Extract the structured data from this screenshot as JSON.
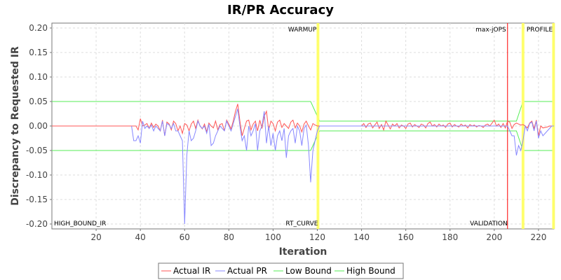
{
  "chart_data": {
    "type": "line",
    "title": "IR/PR Accuracy",
    "xlabel": "Iteration",
    "ylabel": "Discrepancy to Requested IR",
    "xlim": [
      0,
      227
    ],
    "ylim": [
      -0.21,
      0.21
    ],
    "x_ticks": [
      20,
      40,
      60,
      80,
      100,
      120,
      140,
      160,
      180,
      200,
      220
    ],
    "y_ticks": [
      -0.2,
      -0.15,
      -0.1,
      -0.05,
      0.0,
      0.05,
      0.1,
      0.15,
      0.2
    ],
    "y_tick_labels": [
      "-0.20",
      "-0.15",
      "-0.10",
      "-0.05",
      "0.00",
      "0.05",
      "0.10",
      "0.15",
      "0.20"
    ],
    "grid": true,
    "legend_position": "bottom",
    "series": [
      {
        "name": "Actual IR",
        "color": "#ff5555",
        "points": [
          [
            0,
            0
          ],
          [
            36,
            0
          ],
          [
            38,
            0
          ],
          [
            39,
            -0.008
          ],
          [
            40,
            0.015
          ],
          [
            41,
            0
          ],
          [
            42,
            0.002
          ],
          [
            43,
            0.005
          ],
          [
            44,
            -0.005
          ],
          [
            45,
            0.006
          ],
          [
            46,
            -0.003
          ],
          [
            47,
            0.004
          ],
          [
            48,
            0
          ],
          [
            49,
            -0.01
          ],
          [
            50,
            0.012
          ],
          [
            51,
            -0.02
          ],
          [
            52,
            0.008
          ],
          [
            53,
            0.004
          ],
          [
            54,
            -0.008
          ],
          [
            55,
            0.01
          ],
          [
            56,
            0.005
          ],
          [
            57,
            -0.01
          ],
          [
            58,
            0
          ],
          [
            59,
            -0.015
          ],
          [
            60,
            0.005
          ],
          [
            61,
            0.002
          ],
          [
            62,
            -0.01
          ],
          [
            63,
            0.004
          ],
          [
            64,
            0.01
          ],
          [
            65,
            -0.005
          ],
          [
            66,
            0.012
          ],
          [
            67,
            0
          ],
          [
            68,
            -0.006
          ],
          [
            69,
            0.004
          ],
          [
            70,
            -0.012
          ],
          [
            71,
            0.006
          ],
          [
            72,
            0
          ],
          [
            73,
            -0.004
          ],
          [
            74,
            0.01
          ],
          [
            75,
            -0.008
          ],
          [
            76,
            0.003
          ],
          [
            77,
            0.005
          ],
          [
            78,
            -0.01
          ],
          [
            79,
            0.012
          ],
          [
            80,
            0.004
          ],
          [
            81,
            -0.006
          ],
          [
            82,
            0.01
          ],
          [
            83,
            0.03
          ],
          [
            84,
            0.045
          ],
          [
            85,
            0.01
          ],
          [
            86,
            -0.02
          ],
          [
            87,
            -0.005
          ],
          [
            88,
            0.01
          ],
          [
            89,
            0.012
          ],
          [
            90,
            -0.008
          ],
          [
            91,
            0.004
          ],
          [
            92,
            0.01
          ],
          [
            93,
            -0.01
          ],
          [
            94,
            0.012
          ],
          [
            95,
            -0.005
          ],
          [
            96,
            0.02
          ],
          [
            97,
            0.03
          ],
          [
            98,
            -0.008
          ],
          [
            99,
            0.01
          ],
          [
            100,
            0.005
          ],
          [
            101,
            -0.01
          ],
          [
            102,
            0.008
          ],
          [
            103,
            0.012
          ],
          [
            104,
            -0.003
          ],
          [
            105,
            0.005
          ],
          [
            106,
            0
          ],
          [
            107,
            -0.005
          ],
          [
            108,
            0.008
          ],
          [
            109,
            0.012
          ],
          [
            110,
            -0.004
          ],
          [
            111,
            0.006
          ],
          [
            112,
            0
          ],
          [
            113,
            -0.012
          ],
          [
            114,
            0.004
          ],
          [
            115,
            0.01
          ],
          [
            116,
            0
          ],
          [
            117,
            -0.008
          ],
          [
            118,
            0.005
          ],
          [
            119,
            0.002
          ],
          [
            120,
            0
          ],
          [
            121,
            0
          ],
          [
            140,
            0
          ],
          [
            141,
            0.005
          ],
          [
            142,
            -0.003
          ],
          [
            143,
            0.004
          ],
          [
            144,
            0.006
          ],
          [
            145,
            -0.004
          ],
          [
            146,
            0.002
          ],
          [
            147,
            0.008
          ],
          [
            148,
            -0.005
          ],
          [
            149,
            0.003
          ],
          [
            150,
            -0.008
          ],
          [
            151,
            0.01
          ],
          [
            152,
            0.002
          ],
          [
            153,
            -0.006
          ],
          [
            154,
            0.004
          ],
          [
            155,
            0
          ],
          [
            156,
            0.005
          ],
          [
            157,
            -0.004
          ],
          [
            158,
            0.002
          ],
          [
            159,
            0
          ],
          [
            160,
            -0.005
          ],
          [
            161,
            0.004
          ],
          [
            162,
            0.006
          ],
          [
            163,
            -0.002
          ],
          [
            164,
            0.003
          ],
          [
            165,
            0
          ],
          [
            166,
            -0.003
          ],
          [
            167,
            0.004
          ],
          [
            168,
            0.002
          ],
          [
            169,
            -0.004
          ],
          [
            170,
            0.005
          ],
          [
            171,
            0.008
          ],
          [
            172,
            0
          ],
          [
            173,
            0.003
          ],
          [
            174,
            -0.002
          ],
          [
            175,
            0.004
          ],
          [
            176,
            0
          ],
          [
            177,
            0.002
          ],
          [
            178,
            -0.003
          ],
          [
            179,
            0.004
          ],
          [
            180,
            0.006
          ],
          [
            181,
            -0.002
          ],
          [
            182,
            0.003
          ],
          [
            183,
            0
          ],
          [
            184,
            -0.002
          ],
          [
            185,
            0.004
          ],
          [
            186,
            0
          ],
          [
            187,
            0.002
          ],
          [
            188,
            -0.004
          ],
          [
            189,
            0.003
          ],
          [
            190,
            0
          ],
          [
            191,
            0.002
          ],
          [
            192,
            -0.002
          ],
          [
            193,
            0.001
          ],
          [
            194,
            0
          ],
          [
            195,
            -0.003
          ],
          [
            196,
            0.002
          ],
          [
            197,
            0.004
          ],
          [
            198,
            0
          ],
          [
            199,
            0.006
          ],
          [
            200,
            0.012
          ],
          [
            201,
            0
          ],
          [
            202,
            0.004
          ],
          [
            203,
            -0.003
          ],
          [
            204,
            0.005
          ],
          [
            205,
            -0.004
          ],
          [
            206,
            0.01
          ],
          [
            207,
            0.008
          ],
          [
            208,
            -0.005
          ],
          [
            209,
            0.003
          ],
          [
            210,
            0.006
          ],
          [
            211,
            0.004
          ],
          [
            212,
            0.002
          ],
          [
            213,
            0.003
          ],
          [
            214,
            0
          ],
          [
            215,
            -0.004
          ],
          [
            216,
            0.006
          ],
          [
            217,
            0.01
          ],
          [
            218,
            -0.005
          ],
          [
            219,
            0.012
          ],
          [
            220,
            -0.02
          ],
          [
            221,
            0
          ],
          [
            222,
            -0.004
          ],
          [
            223,
            -0.003
          ],
          [
            224,
            -0.002
          ],
          [
            225,
            0
          ],
          [
            226,
            0
          ],
          [
            227,
            0
          ]
        ]
      },
      {
        "name": "Actual PR",
        "color": "#8888ff",
        "points": [
          [
            36,
            0
          ],
          [
            37,
            -0.03
          ],
          [
            38,
            -0.03
          ],
          [
            39,
            -0.02
          ],
          [
            40,
            -0.035
          ],
          [
            41,
            0.01
          ],
          [
            42,
            -0.005
          ],
          [
            43,
            0
          ],
          [
            44,
            -0.005
          ],
          [
            45,
            0.002
          ],
          [
            46,
            -0.01
          ],
          [
            47,
            0
          ],
          [
            48,
            -0.005
          ],
          [
            49,
            -0.01
          ],
          [
            50,
            0.01
          ],
          [
            51,
            -0.02
          ],
          [
            52,
            0.005
          ],
          [
            53,
            0.002
          ],
          [
            54,
            -0.005
          ],
          [
            55,
            0.005
          ],
          [
            56,
            -0.01
          ],
          [
            57,
            -0.01
          ],
          [
            58,
            -0.02
          ],
          [
            59,
            -0.03
          ],
          [
            60,
            -0.2
          ],
          [
            61,
            -0.06
          ],
          [
            62,
            -0.01
          ],
          [
            63,
            -0.03
          ],
          [
            64,
            -0.025
          ],
          [
            65,
            -0.01
          ],
          [
            66,
            0.01
          ],
          [
            67,
            0
          ],
          [
            68,
            -0.005
          ],
          [
            69,
            0
          ],
          [
            70,
            -0.015
          ],
          [
            71,
            0.004
          ],
          [
            72,
            -0.04
          ],
          [
            73,
            -0.035
          ],
          [
            74,
            -0.02
          ],
          [
            75,
            -0.01
          ],
          [
            76,
            0
          ],
          [
            77,
            -0.005
          ],
          [
            78,
            -0.01
          ],
          [
            79,
            0.01
          ],
          [
            80,
            0
          ],
          [
            81,
            -0.01
          ],
          [
            82,
            0.005
          ],
          [
            83,
            0.02
          ],
          [
            84,
            0.035
          ],
          [
            85,
            0
          ],
          [
            86,
            -0.03
          ],
          [
            87,
            -0.02
          ],
          [
            88,
            -0.05
          ],
          [
            89,
            0
          ],
          [
            90,
            -0.02
          ],
          [
            91,
            -0.01
          ],
          [
            92,
            0.005
          ],
          [
            93,
            -0.05
          ],
          [
            94,
            -0.01
          ],
          [
            95,
            0
          ],
          [
            96,
            0.03
          ],
          [
            97,
            -0.035
          ],
          [
            98,
            0
          ],
          [
            99,
            -0.04
          ],
          [
            100,
            -0.015
          ],
          [
            101,
            -0.05
          ],
          [
            102,
            -0.02
          ],
          [
            103,
            -0.01
          ],
          [
            104,
            -0.03
          ],
          [
            105,
            -0.005
          ],
          [
            106,
            -0.065
          ],
          [
            107,
            -0.02
          ],
          [
            108,
            -0.01
          ],
          [
            109,
            -0.005
          ],
          [
            110,
            -0.035
          ],
          [
            111,
            0
          ],
          [
            112,
            -0.01
          ],
          [
            113,
            -0.04
          ],
          [
            114,
            -0.005
          ],
          [
            115,
            0.002
          ],
          [
            116,
            -0.04
          ],
          [
            117,
            -0.115
          ],
          [
            118,
            -0.05
          ],
          [
            119,
            -0.03
          ],
          [
            120,
            -0.01
          ],
          [
            121,
            0
          ],
          [
            206,
            0
          ],
          [
            207,
            -0.01
          ],
          [
            208,
            -0.02
          ],
          [
            209,
            -0.02
          ],
          [
            210,
            -0.06
          ],
          [
            211,
            -0.04
          ],
          [
            212,
            -0.05
          ],
          [
            213,
            -0.03
          ],
          [
            214,
            0
          ],
          [
            215,
            -0.01
          ],
          [
            216,
            0.005
          ],
          [
            217,
            0.008
          ],
          [
            218,
            -0.01
          ],
          [
            219,
            0.01
          ],
          [
            220,
            -0.025
          ],
          [
            221,
            -0.01
          ],
          [
            222,
            -0.02
          ],
          [
            223,
            -0.015
          ],
          [
            224,
            -0.01
          ],
          [
            225,
            -0.005
          ],
          [
            226,
            0
          ],
          [
            227,
            0
          ]
        ]
      },
      {
        "name": "Low Bound",
        "color": "#55ee55",
        "points": [
          [
            0,
            -0.05
          ],
          [
            117,
            -0.05
          ],
          [
            121,
            -0.01
          ],
          [
            206,
            -0.01
          ],
          [
            210,
            -0.01
          ],
          [
            213,
            -0.05
          ],
          [
            227,
            -0.05
          ]
        ]
      },
      {
        "name": "High Bound",
        "color": "#55ee55",
        "points": [
          [
            0,
            0.05
          ],
          [
            117,
            0.05
          ],
          [
            121,
            0.01
          ],
          [
            206,
            0.01
          ],
          [
            210,
            0.01
          ],
          [
            213,
            0.05
          ],
          [
            227,
            0.05
          ]
        ]
      }
    ],
    "markers": [
      {
        "x": 120.3,
        "color": "#ffff66",
        "top_label": "WARMUP",
        "bottom_label": "RT_CURVE"
      },
      {
        "x": 206,
        "color": "#ff0000",
        "top_label": "max-jOPS",
        "bottom_label": "VALIDATION"
      },
      {
        "x": 213,
        "color": "#ffff66",
        "top_label": "PROFILE",
        "bottom_label": ""
      },
      {
        "x": 226.8,
        "color": "#ffff66",
        "top_label": "",
        "bottom_label": ""
      }
    ],
    "corner_label": "HIGH_BOUND_IR"
  }
}
